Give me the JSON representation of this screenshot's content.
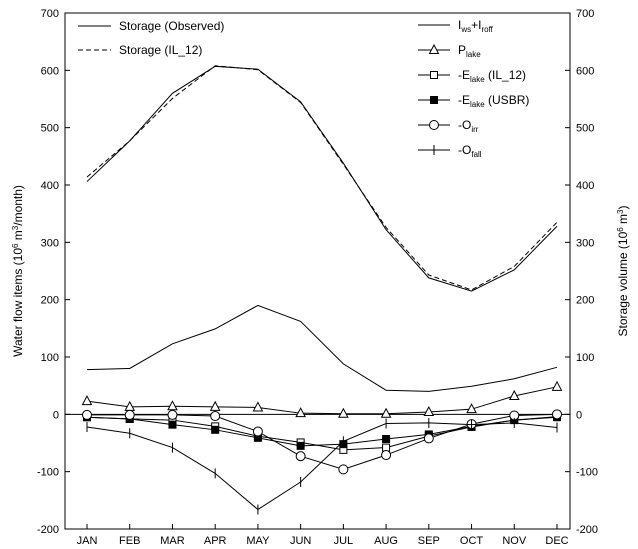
{
  "chart_data": {
    "type": "line",
    "categories": [
      "JAN",
      "FEB",
      "MAR",
      "APR",
      "MAY",
      "JUN",
      "JUL",
      "AUG",
      "SEP",
      "OCT",
      "NOV",
      "DEC"
    ],
    "ylabel_left": {
      "main": "Water flow items (10",
      "sup": "6",
      "rest": " m",
      "sup2": "3",
      "end": "/month)"
    },
    "ylabel_right": {
      "main": "Storage volume (10",
      "sup": "6",
      "rest": " m",
      "sup2": "3",
      "end": ")"
    },
    "ylim": [
      -200,
      700
    ],
    "yticks": [
      -200,
      -100,
      0,
      100,
      200,
      300,
      400,
      500,
      600,
      700
    ],
    "grid": false,
    "legend_left": [
      {
        "label": "Storage (Observed)",
        "style": "solid"
      },
      {
        "label": "Storage (IL_12)",
        "style": "dashed"
      }
    ],
    "legend_right": [
      {
        "main": "I",
        "sub": "ws",
        "mid": "+I",
        "sub2": "roff",
        "end": "",
        "marker": "none"
      },
      {
        "main": "P",
        "sub": "lake",
        "mid": "",
        "sub2": "",
        "end": "",
        "marker": "triangle"
      },
      {
        "main": "-E",
        "sub": "lake",
        "mid": "",
        "sub2": "",
        "end": " (IL_12)",
        "marker": "square-open"
      },
      {
        "main": "-E",
        "sub": "lake",
        "mid": "",
        "sub2": "",
        "end": " (USBR)",
        "marker": "square-filled"
      },
      {
        "main": "-O",
        "sub": "irr",
        "mid": "",
        "sub2": "",
        "end": "",
        "marker": "circle-open"
      },
      {
        "main": "-O",
        "sub": "fall",
        "mid": "",
        "sub2": "",
        "end": "",
        "marker": "plus"
      }
    ],
    "series": [
      {
        "name": "Storage (Observed)",
        "axis": "right",
        "style": "solid",
        "marker": "none",
        "values": [
          406,
          477,
          560,
          607,
          602,
          545,
          438,
          322,
          238,
          215,
          252,
          328
        ]
      },
      {
        "name": "Storage (IL_12)",
        "axis": "right",
        "style": "dashed",
        "marker": "none",
        "values": [
          414,
          477,
          551,
          608,
          601,
          544,
          436,
          326,
          243,
          217,
          258,
          335
        ]
      },
      {
        "name": "Iws+Iroff",
        "axis": "left",
        "style": "solid",
        "marker": "none",
        "values": [
          78,
          80,
          123,
          149,
          190,
          162,
          88,
          42,
          40,
          49,
          62,
          82
        ]
      },
      {
        "name": "Plake",
        "axis": "left",
        "style": "solid",
        "marker": "triangle",
        "values": [
          23,
          13,
          14,
          13,
          12,
          2,
          1,
          1,
          4,
          9,
          32,
          48
        ]
      },
      {
        "name": "-Elake (IL_12)",
        "axis": "left",
        "style": "solid",
        "marker": "square-open",
        "values": [
          -5,
          -8,
          -10,
          -21,
          -38,
          -49,
          -62,
          -58,
          -38,
          -22,
          -10,
          -4
        ]
      },
      {
        "name": "-Elake (USBR)",
        "axis": "left",
        "style": "solid",
        "marker": "square-filled",
        "values": [
          -5,
          -8,
          -18,
          -27,
          -41,
          -55,
          -52,
          -43,
          -35,
          -21,
          -10,
          -5
        ]
      },
      {
        "name": "-Oirr",
        "axis": "left",
        "style": "solid",
        "marker": "circle-open",
        "values": [
          -1,
          -1,
          -1,
          -3,
          -30,
          -73,
          -96,
          -71,
          -42,
          -17,
          -2,
          0
        ]
      },
      {
        "name": "-Ofall",
        "axis": "left",
        "style": "solid",
        "marker": "plus",
        "values": [
          -22,
          -33,
          -58,
          -103,
          -166,
          -118,
          -47,
          -16,
          -15,
          -18,
          -15,
          -23
        ]
      }
    ]
  }
}
